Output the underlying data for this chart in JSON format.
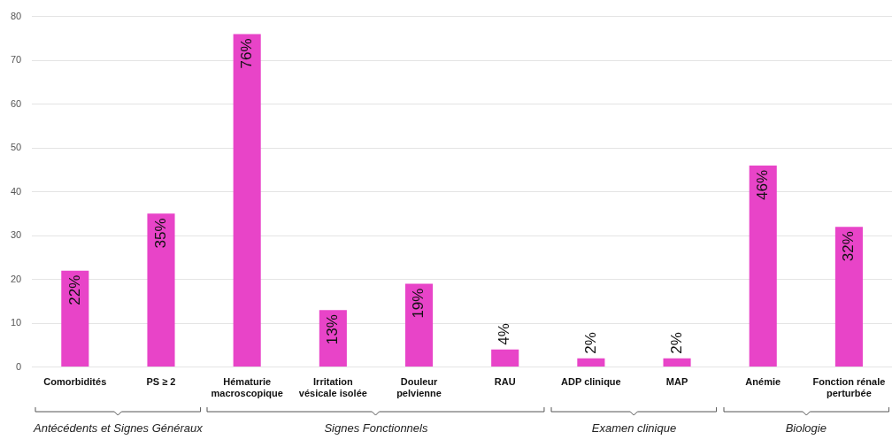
{
  "chart_data": {
    "type": "bar",
    "categories": [
      "Comorbidités",
      "PS ≥ 2",
      "Hématurie\nmacroscopique",
      "Irritation\nvésicale isolée",
      "Douleur\npelvienne",
      "RAU",
      "ADP clinique",
      "MAP",
      "Anémie",
      "Fonction rénale\nperturbée"
    ],
    "values": [
      22,
      35,
      76,
      13,
      19,
      4,
      2,
      2,
      46,
      32
    ],
    "value_labels": [
      "22%",
      "35%",
      "76%",
      "13%",
      "19%",
      "4%",
      "2%",
      "2%",
      "46%",
      "32%"
    ],
    "color": "#e844c8",
    "ylim": [
      0,
      80
    ],
    "yticks": [
      0,
      10,
      20,
      30,
      40,
      50,
      60,
      70,
      80
    ],
    "grid": "y",
    "legend": false,
    "annotations": [
      "Antécédents et Signes Généraux",
      "Signes Fonctionnels",
      "Examen clinique",
      "Biologie"
    ]
  }
}
